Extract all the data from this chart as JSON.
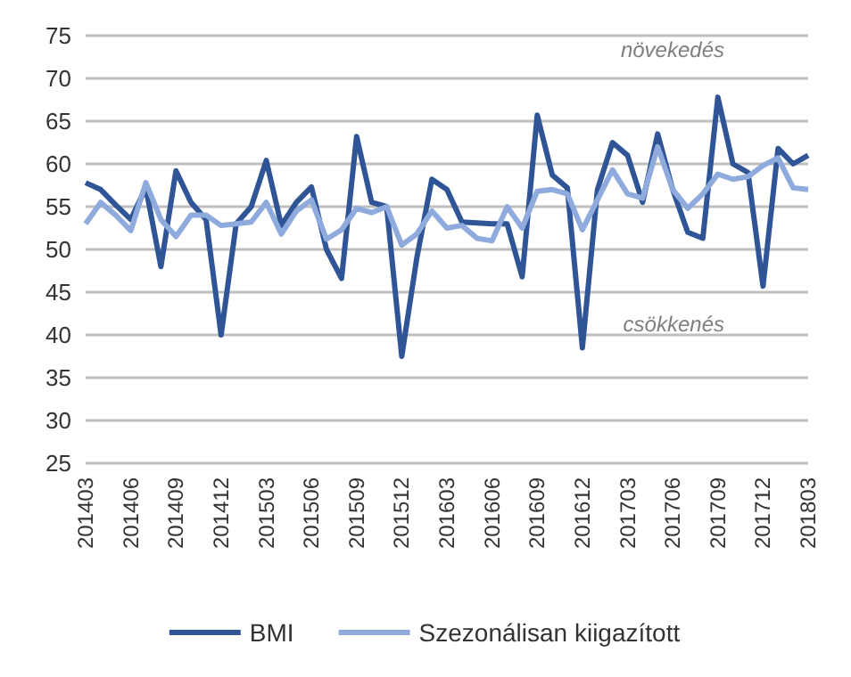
{
  "chart_data": {
    "type": "line",
    "categories": [
      "201403",
      null,
      null,
      "201406",
      null,
      null,
      "201409",
      null,
      null,
      "201412",
      null,
      null,
      "201503",
      null,
      null,
      "201506",
      null,
      null,
      "201509",
      null,
      null,
      "201512",
      null,
      null,
      "201603",
      null,
      null,
      "201606",
      null,
      null,
      "201609",
      null,
      null,
      "201612",
      null,
      null,
      "201703",
      null,
      null,
      "201706",
      null,
      null,
      "201709",
      null,
      null,
      "201712",
      null,
      null,
      "201803"
    ],
    "series": [
      {
        "name": "BMI",
        "color": "#2f5597",
        "values": [
          57.8,
          57,
          55.2,
          53.5,
          57.2,
          48,
          59.2,
          55.5,
          53.5,
          40,
          53,
          55,
          60.4,
          52.8,
          55.5,
          57.3,
          50,
          46.6,
          63.2,
          55.5,
          55,
          37.5,
          49,
          58.2,
          57,
          53.2,
          53.1,
          53,
          53,
          46.8,
          65.7,
          58.7,
          57.2,
          38.5,
          57,
          62.5,
          61,
          55.5,
          63.5,
          57,
          52,
          51.3,
          67.8,
          60,
          59,
          45.7,
          61.8,
          60,
          61
        ]
      },
      {
        "name": "Szezonálisan kiigazított",
        "color": "#8faadc",
        "values": [
          53,
          55.5,
          54,
          52.2,
          57.8,
          53.5,
          51.5,
          54,
          54,
          52.8,
          53,
          53.2,
          55.5,
          51.8,
          54.5,
          55.8,
          51.2,
          52.3,
          54.8,
          54.3,
          55,
          50.5,
          51.8,
          54.5,
          52.5,
          52.8,
          51.3,
          51,
          55,
          52.5,
          56.8,
          57,
          56.5,
          52.3,
          55.8,
          59.3,
          56.5,
          56,
          62,
          57,
          54.8,
          56.5,
          58.8,
          58.2,
          58.5,
          59.8,
          60.7,
          57.2,
          57
        ]
      }
    ],
    "ylim": [
      25,
      75
    ],
    "yticks": [
      25,
      30,
      35,
      40,
      45,
      50,
      55,
      60,
      65,
      70,
      75
    ],
    "grid": "y",
    "legend": "bottom",
    "marker": "none",
    "line_style": "solid",
    "annotations": [
      "növekedés",
      "csökkenés"
    ]
  }
}
